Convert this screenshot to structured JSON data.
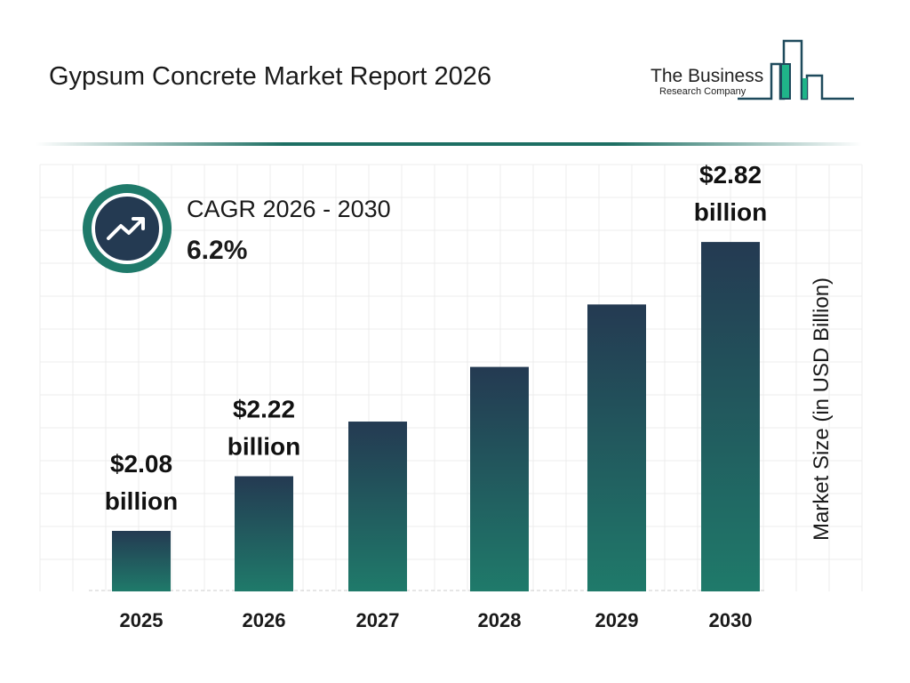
{
  "title": "Gypsum Concrete Market Report 2026",
  "logo": {
    "line1": "The Business",
    "line2": "Research Company",
    "colors": [
      "#1e4a5c",
      "#1fb489"
    ]
  },
  "cagr": {
    "label": "CAGR 2026 - 2030",
    "value": "6.2%",
    "icon": "trending-up-icon"
  },
  "chart_data": {
    "type": "bar",
    "categories": [
      "2025",
      "2026",
      "2027",
      "2028",
      "2029",
      "2030"
    ],
    "values": [
      2.08,
      2.22,
      2.36,
      2.5,
      2.66,
      2.82
    ],
    "data_labels": [
      [
        "$2.08",
        "billion"
      ],
      [
        "$2.22",
        "billion"
      ],
      null,
      null,
      null,
      [
        "$2.82",
        "billion"
      ]
    ],
    "xlabel": "",
    "ylabel": "Market Size (in USD Billion)",
    "grid": true,
    "bar_gradient": [
      "#243a52",
      "#1f7a6a"
    ]
  }
}
